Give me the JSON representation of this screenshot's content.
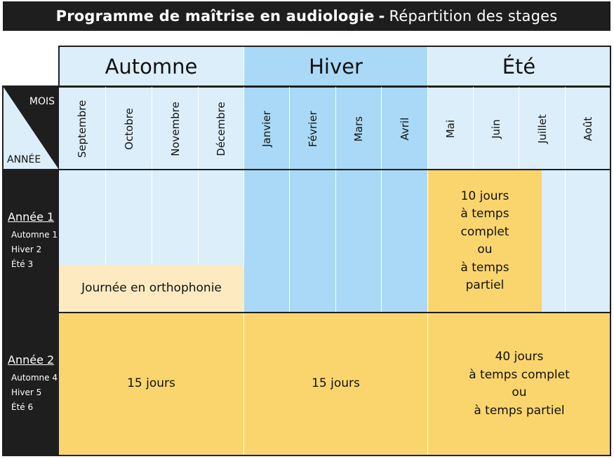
{
  "title": {
    "main": "Programme de maîtrise en audiologie",
    "separator": "-",
    "subtitle": "Répartition des stages"
  },
  "colors": {
    "dark": "#1e1e1e",
    "light_blue": "#dceef9",
    "mid_blue": "#a9d9f6",
    "yellow": "#fad56e",
    "pale_yellow": "#fdeac0"
  },
  "header": {
    "corner_top": "MOIS",
    "corner_bottom": "ANNÉE"
  },
  "seasons": [
    {
      "label": "Automne",
      "months": [
        "Septembre",
        "Octobre",
        "Novembre",
        "Décembre"
      ]
    },
    {
      "label": "Hiver",
      "months": [
        "Janvier",
        "Février",
        "Mars",
        "Avril"
      ]
    },
    {
      "label": "Été",
      "months": [
        "Mai",
        "Juin",
        "Juillet",
        "Août"
      ]
    }
  ],
  "years": [
    {
      "label": "Année 1",
      "items": [
        "Automne 1",
        "Hiver 2",
        "Été 3"
      ]
    },
    {
      "label": "Année 2",
      "items": [
        "Automne 4",
        "Hiver 5",
        "Été 6"
      ]
    }
  ],
  "blocks": {
    "y1_autumn": "Journée en orthophonie",
    "y1_summer": [
      "10 jours",
      "à temps",
      "complet",
      "ou",
      "à temps",
      "partiel"
    ],
    "y2_autumn": "15 jours",
    "y2_winter": "15 jours",
    "y2_summer": [
      "40 jours",
      "à temps complet",
      "ou",
      "à temps partiel"
    ]
  }
}
